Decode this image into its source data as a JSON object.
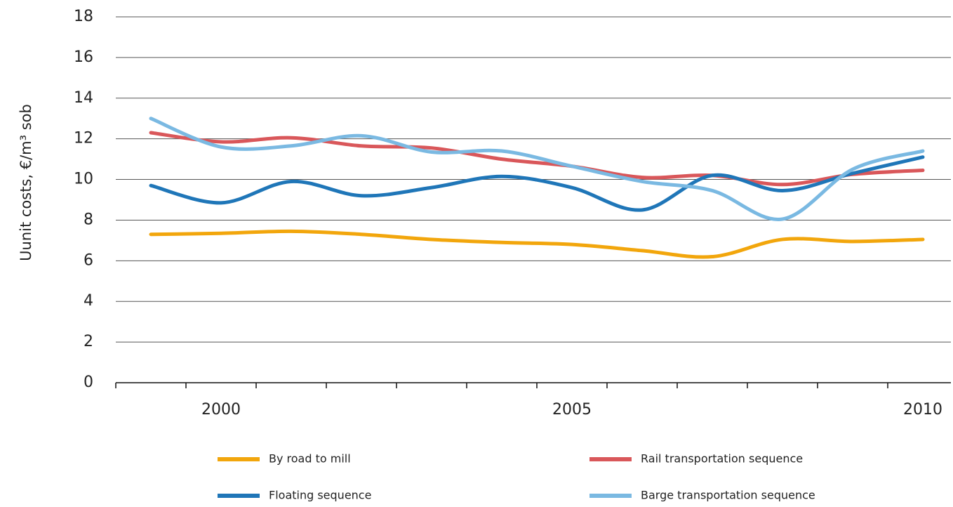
{
  "chart_data": {
    "type": "line",
    "y_label": "Uunit costs, €/m³ sob",
    "categories": [
      null,
      "2000",
      null,
      null,
      null,
      null,
      "2005",
      null,
      null,
      null,
      null,
      "2010"
    ],
    "series": [
      {
        "name": "By road to mill",
        "color": "#f2a60c",
        "values": [
          7.3,
          7.35,
          7.45,
          7.3,
          7.05,
          6.9,
          6.8,
          6.5,
          6.2,
          7.05,
          6.95,
          7.05
        ]
      },
      {
        "name": "Rail transportation sequence",
        "color": "#d9575a",
        "values": [
          12.3,
          11.85,
          12.05,
          11.65,
          11.55,
          11.0,
          10.65,
          10.1,
          10.2,
          9.75,
          10.25,
          10.45
        ]
      },
      {
        "name": "Floating sequence",
        "color": "#1f76b8",
        "values": [
          9.7,
          8.85,
          9.9,
          9.2,
          9.6,
          10.15,
          9.6,
          8.5,
          10.2,
          9.45,
          10.3,
          11.1
        ]
      },
      {
        "name": "Barge transportation sequence",
        "color": "#7ab9e2",
        "values": [
          13.0,
          11.6,
          11.65,
          12.15,
          11.35,
          11.4,
          10.65,
          9.9,
          9.45,
          8.05,
          10.5,
          11.4
        ]
      }
    ],
    "ylim": [
      0,
      18
    ],
    "yticks": [
      0,
      2,
      4,
      6,
      8,
      10,
      12,
      14,
      16,
      18
    ],
    "grid": true
  }
}
